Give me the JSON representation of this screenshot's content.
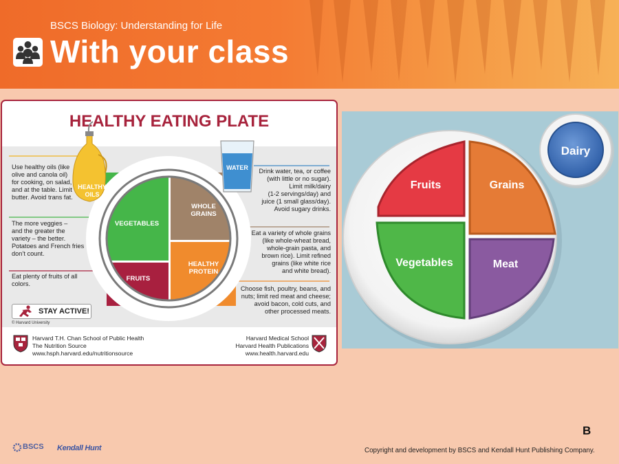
{
  "header": {
    "subtitle": "BSCS Biology: Understanding for Life",
    "title": "With your class",
    "icon": "group-people-icon"
  },
  "healthy_plate": {
    "title": "HEALTHY EATING PLATE",
    "oils_label": "HEALTHY\nOILS",
    "water_label": "WATER",
    "sections": {
      "vegetables": "VEGETABLES",
      "whole_grains": "WHOLE\nGRAINS",
      "healthy_protein": "HEALTHY\nPROTEIN",
      "fruits": "FRUITS"
    },
    "left_notes": [
      "Use healthy oils (like\nolive and canola oil)\nfor cooking, on salad,\nand at the table. Limit\nbutter. Avoid trans fat.",
      "The more veggies –\nand the greater the\nvariety – the better.\nPotatoes and French fries\ndon’t count.",
      "Eat plenty of fruits of all\ncolors."
    ],
    "right_notes": [
      "Drink water, tea, or coffee\n(with little or no sugar).\nLimit milk/dairy\n(1-2 servings/day) and\njuice (1 small glass/day).\nAvoid sugary drinks.",
      "Eat a variety of whole grains\n(like whole-wheat bread,\nwhole-grain pasta, and\nbrown rice). Limit refined\ngrains (like white rice\nand white bread).",
      "Choose fish, poultry, beans, and\nnuts;  limit red meat and cheese;\navoid bacon, cold cuts,  and\nother processed meats."
    ],
    "stay_active": "STAY ACTIVE!",
    "copyright": "© Harvard University",
    "footer_left": "Harvard T.H. Chan School of Public Health\nThe Nutrition Source\nwww.hsph.harvard.edu/nutritionsource",
    "footer_right": "Harvard Medical School\nHarvard Health Publications\nwww.health.harvard.edu",
    "colors": {
      "vegetables": "#45b649",
      "grains": "#a08369",
      "protein": "#f08b2d",
      "fruits": "#a8203f",
      "accent": "#a7233c"
    }
  },
  "my_plate": {
    "fruits": "Fruits",
    "grains": "Grains",
    "vegetables": "Vegetables",
    "meat": "Meat",
    "dairy": "Dairy",
    "colors": {
      "fruits": "#e53a44",
      "grains": "#e57b36",
      "vegetables": "#4fb748",
      "meat": "#8a5aa0",
      "dairy": "#3c6fb5",
      "background": "#a9cbd6"
    }
  },
  "panel_letter": "B",
  "logos": {
    "bscs": "BSCS",
    "kendall_hunt": "Kendall Hunt"
  },
  "copyright": "Copyright and development by BSCS and Kendall Hunt Publishing Company."
}
